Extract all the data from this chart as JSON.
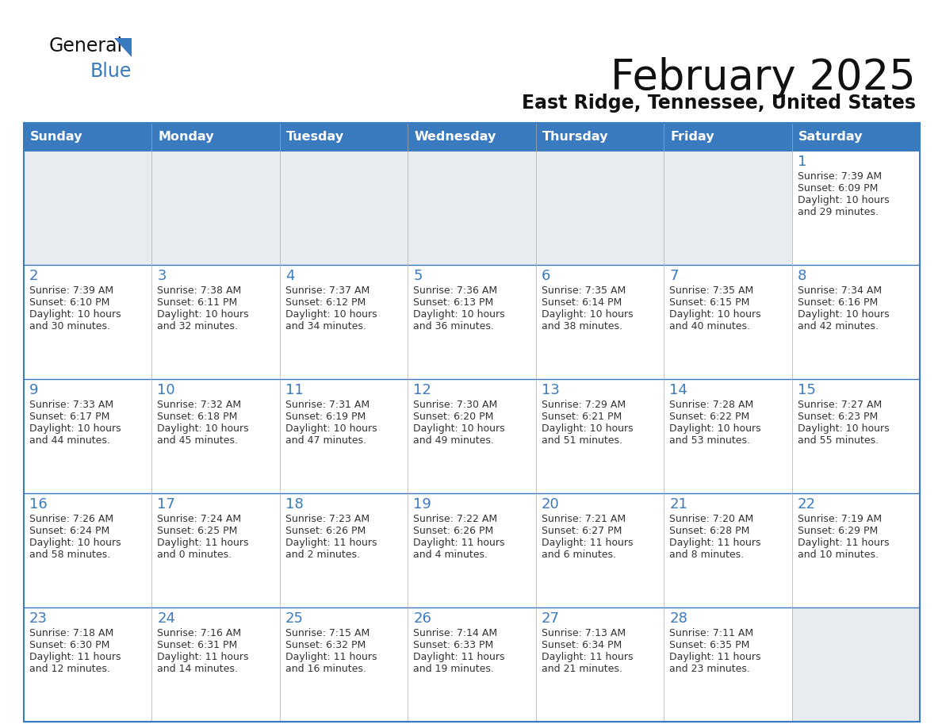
{
  "title": "February 2025",
  "subtitle": "East Ridge, Tennessee, United States",
  "days_of_week": [
    "Sunday",
    "Monday",
    "Tuesday",
    "Wednesday",
    "Thursday",
    "Friday",
    "Saturday"
  ],
  "header_bg": "#3a7abf",
  "header_text": "#ffffff",
  "cell_bg_light": "#e8ecf0",
  "cell_bg_white": "#ffffff",
  "border_color": "#3a7abf",
  "day_number_color": "#3a7abf",
  "cell_text_color": "#333333",
  "title_color": "#111111",
  "logo_text_color": "#111111",
  "logo_blue_color": "#3a7abf",
  "calendar_data": [
    [
      null,
      null,
      null,
      null,
      null,
      null,
      {
        "day": 1,
        "sunrise": "7:39 AM",
        "sunset": "6:09 PM",
        "daylight_line1": "Daylight: 10 hours",
        "daylight_line2": "and 29 minutes."
      }
    ],
    [
      {
        "day": 2,
        "sunrise": "7:39 AM",
        "sunset": "6:10 PM",
        "daylight_line1": "Daylight: 10 hours",
        "daylight_line2": "and 30 minutes."
      },
      {
        "day": 3,
        "sunrise": "7:38 AM",
        "sunset": "6:11 PM",
        "daylight_line1": "Daylight: 10 hours",
        "daylight_line2": "and 32 minutes."
      },
      {
        "day": 4,
        "sunrise": "7:37 AM",
        "sunset": "6:12 PM",
        "daylight_line1": "Daylight: 10 hours",
        "daylight_line2": "and 34 minutes."
      },
      {
        "day": 5,
        "sunrise": "7:36 AM",
        "sunset": "6:13 PM",
        "daylight_line1": "Daylight: 10 hours",
        "daylight_line2": "and 36 minutes."
      },
      {
        "day": 6,
        "sunrise": "7:35 AM",
        "sunset": "6:14 PM",
        "daylight_line1": "Daylight: 10 hours",
        "daylight_line2": "and 38 minutes."
      },
      {
        "day": 7,
        "sunrise": "7:35 AM",
        "sunset": "6:15 PM",
        "daylight_line1": "Daylight: 10 hours",
        "daylight_line2": "and 40 minutes."
      },
      {
        "day": 8,
        "sunrise": "7:34 AM",
        "sunset": "6:16 PM",
        "daylight_line1": "Daylight: 10 hours",
        "daylight_line2": "and 42 minutes."
      }
    ],
    [
      {
        "day": 9,
        "sunrise": "7:33 AM",
        "sunset": "6:17 PM",
        "daylight_line1": "Daylight: 10 hours",
        "daylight_line2": "and 44 minutes."
      },
      {
        "day": 10,
        "sunrise": "7:32 AM",
        "sunset": "6:18 PM",
        "daylight_line1": "Daylight: 10 hours",
        "daylight_line2": "and 45 minutes."
      },
      {
        "day": 11,
        "sunrise": "7:31 AM",
        "sunset": "6:19 PM",
        "daylight_line1": "Daylight: 10 hours",
        "daylight_line2": "and 47 minutes."
      },
      {
        "day": 12,
        "sunrise": "7:30 AM",
        "sunset": "6:20 PM",
        "daylight_line1": "Daylight: 10 hours",
        "daylight_line2": "and 49 minutes."
      },
      {
        "day": 13,
        "sunrise": "7:29 AM",
        "sunset": "6:21 PM",
        "daylight_line1": "Daylight: 10 hours",
        "daylight_line2": "and 51 minutes."
      },
      {
        "day": 14,
        "sunrise": "7:28 AM",
        "sunset": "6:22 PM",
        "daylight_line1": "Daylight: 10 hours",
        "daylight_line2": "and 53 minutes."
      },
      {
        "day": 15,
        "sunrise": "7:27 AM",
        "sunset": "6:23 PM",
        "daylight_line1": "Daylight: 10 hours",
        "daylight_line2": "and 55 minutes."
      }
    ],
    [
      {
        "day": 16,
        "sunrise": "7:26 AM",
        "sunset": "6:24 PM",
        "daylight_line1": "Daylight: 10 hours",
        "daylight_line2": "and 58 minutes."
      },
      {
        "day": 17,
        "sunrise": "7:24 AM",
        "sunset": "6:25 PM",
        "daylight_line1": "Daylight: 11 hours",
        "daylight_line2": "and 0 minutes."
      },
      {
        "day": 18,
        "sunrise": "7:23 AM",
        "sunset": "6:26 PM",
        "daylight_line1": "Daylight: 11 hours",
        "daylight_line2": "and 2 minutes."
      },
      {
        "day": 19,
        "sunrise": "7:22 AM",
        "sunset": "6:26 PM",
        "daylight_line1": "Daylight: 11 hours",
        "daylight_line2": "and 4 minutes."
      },
      {
        "day": 20,
        "sunrise": "7:21 AM",
        "sunset": "6:27 PM",
        "daylight_line1": "Daylight: 11 hours",
        "daylight_line2": "and 6 minutes."
      },
      {
        "day": 21,
        "sunrise": "7:20 AM",
        "sunset": "6:28 PM",
        "daylight_line1": "Daylight: 11 hours",
        "daylight_line2": "and 8 minutes."
      },
      {
        "day": 22,
        "sunrise": "7:19 AM",
        "sunset": "6:29 PM",
        "daylight_line1": "Daylight: 11 hours",
        "daylight_line2": "and 10 minutes."
      }
    ],
    [
      {
        "day": 23,
        "sunrise": "7:18 AM",
        "sunset": "6:30 PM",
        "daylight_line1": "Daylight: 11 hours",
        "daylight_line2": "and 12 minutes."
      },
      {
        "day": 24,
        "sunrise": "7:16 AM",
        "sunset": "6:31 PM",
        "daylight_line1": "Daylight: 11 hours",
        "daylight_line2": "and 14 minutes."
      },
      {
        "day": 25,
        "sunrise": "7:15 AM",
        "sunset": "6:32 PM",
        "daylight_line1": "Daylight: 11 hours",
        "daylight_line2": "and 16 minutes."
      },
      {
        "day": 26,
        "sunrise": "7:14 AM",
        "sunset": "6:33 PM",
        "daylight_line1": "Daylight: 11 hours",
        "daylight_line2": "and 19 minutes."
      },
      {
        "day": 27,
        "sunrise": "7:13 AM",
        "sunset": "6:34 PM",
        "daylight_line1": "Daylight: 11 hours",
        "daylight_line2": "and 21 minutes."
      },
      {
        "day": 28,
        "sunrise": "7:11 AM",
        "sunset": "6:35 PM",
        "daylight_line1": "Daylight: 11 hours",
        "daylight_line2": "and 23 minutes."
      },
      null
    ]
  ]
}
